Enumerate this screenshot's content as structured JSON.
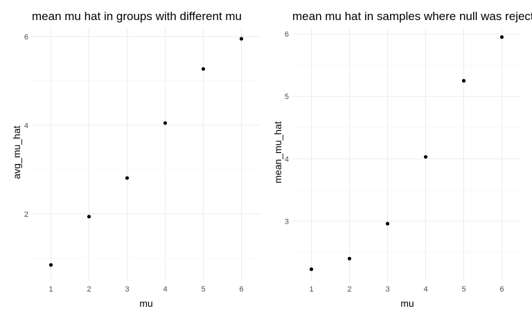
{
  "chart_data": [
    {
      "type": "scatter",
      "title": "mean mu hat in groups with different mu",
      "xlabel": "mu",
      "ylabel": "avg_mu_hat",
      "x": [
        1,
        2,
        3,
        4,
        5,
        6
      ],
      "y": [
        0.85,
        1.94,
        2.81,
        4.05,
        5.27,
        5.95
      ],
      "xticks": [
        1,
        2,
        3,
        4,
        5,
        6
      ],
      "yticks": [
        2,
        4,
        6
      ],
      "xlim": [
        0.5,
        6.5
      ],
      "ylim": [
        0.5,
        6.2
      ],
      "grid": true,
      "point_color": "#000000"
    },
    {
      "type": "scatter",
      "title": "mean mu hat in samples where null was rejected",
      "xlabel": "mu",
      "ylabel": "mean_mu_hat",
      "x": [
        1,
        2,
        3,
        4,
        5,
        6
      ],
      "y": [
        2.23,
        2.4,
        2.96,
        4.03,
        5.25,
        5.95
      ],
      "xticks": [
        1,
        2,
        3,
        4,
        5,
        6
      ],
      "yticks": [
        3,
        4,
        5,
        6
      ],
      "xlim": [
        0.5,
        6.5
      ],
      "ylim": [
        2.05,
        6.1
      ],
      "grid": true,
      "point_color": "#000000"
    }
  ]
}
